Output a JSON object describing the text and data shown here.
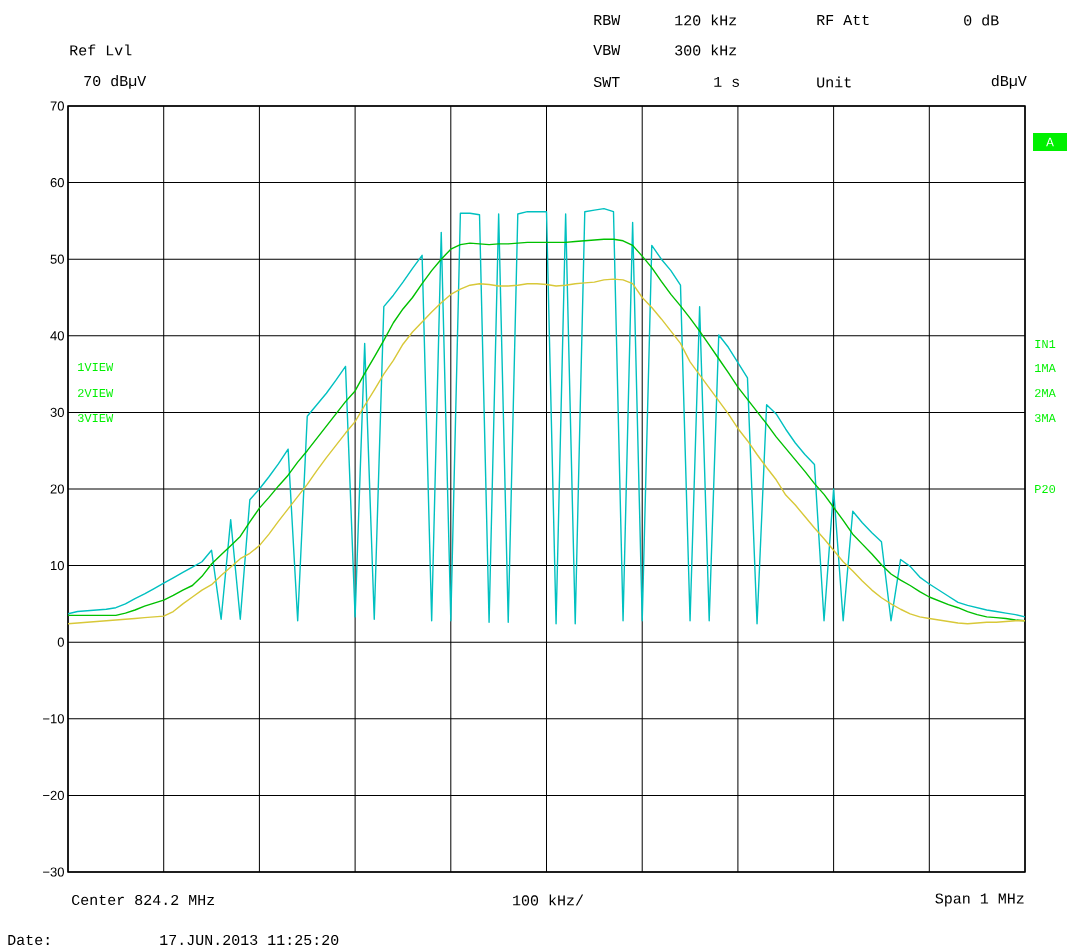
{
  "chart_data": {
    "type": "line",
    "ylim": [
      -30,
      70
    ],
    "categories": [
      null,
      null,
      null,
      null,
      null,
      null,
      null,
      null,
      null,
      null,
      null,
      null,
      null,
      null,
      null,
      null,
      null,
      null,
      null,
      null,
      null,
      null,
      null,
      null,
      null,
      null,
      null,
      null,
      null,
      null,
      null,
      null,
      null,
      null,
      null,
      null,
      null,
      null,
      null,
      null,
      null,
      null,
      null,
      null,
      null,
      null,
      null,
      null,
      null,
      null,
      null,
      null,
      null,
      null,
      null,
      null,
      null,
      null,
      null,
      null,
      null,
      null,
      null,
      null,
      null,
      null,
      null,
      null,
      null,
      null,
      null,
      null,
      null,
      null,
      null,
      null,
      null,
      null,
      null,
      null,
      null,
      null,
      null,
      null,
      null,
      null,
      null,
      null,
      null,
      null,
      null,
      null,
      null,
      null,
      null,
      null,
      null,
      null,
      null,
      null,
      null
    ],
    "yticks": [
      {
        "value": -30,
        "label": "−30"
      },
      {
        "value": -20,
        "label": "−20"
      },
      {
        "value": -10,
        "label": "−10"
      },
      {
        "value": 0,
        "label": "0"
      },
      {
        "value": 10,
        "label": "10"
      },
      {
        "value": 20,
        "label": "20"
      },
      {
        "value": 30,
        "label": "30"
      },
      {
        "value": 40,
        "label": "40"
      },
      {
        "value": 50,
        "label": "50"
      },
      {
        "value": 60,
        "label": "60"
      },
      {
        "value": 70,
        "label": "70"
      }
    ],
    "tick_labels": "y",
    "grid": true,
    "series": [
      {
        "color": "#00c0c0",
        "values": [
          3.7,
          4.0,
          4.1,
          4.2,
          4.3,
          4.5,
          5.0,
          5.7,
          6.3,
          7.0,
          7.7,
          8.4,
          9.1,
          9.8,
          10.5,
          12.0,
          3.0,
          16.0,
          3.0,
          18.6,
          20.0,
          21.6,
          23.3,
          25.2,
          2.8,
          29.5,
          31.0,
          32.5,
          34.2,
          36.0,
          3.3,
          39.0,
          3.0,
          43.8,
          45.3,
          47.0,
          48.8,
          50.5,
          2.8,
          53.5,
          2.8,
          56.0,
          56.0,
          55.8,
          2.6,
          55.9,
          2.6,
          55.9,
          56.2,
          56.2,
          56.2,
          2.4,
          55.9,
          2.4,
          56.2,
          56.4,
          56.6,
          56.2,
          2.8,
          54.8,
          2.8,
          51.8,
          50.0,
          48.5,
          46.6,
          2.8,
          43.8,
          2.8,
          40.1,
          38.5,
          36.5,
          34.5,
          2.4,
          31.0,
          29.8,
          27.8,
          26.0,
          24.5,
          23.2,
          2.8,
          20.0,
          2.8,
          17.1,
          15.6,
          14.3,
          13.1,
          2.8,
          10.8,
          9.9,
          8.5,
          7.6,
          6.8,
          6.0,
          5.2,
          4.8,
          4.5,
          4.2,
          4.0,
          3.8,
          3.6,
          3.3
        ]
      },
      {
        "color": "#00c000",
        "values": [
          3.5,
          3.5,
          3.5,
          3.5,
          3.5,
          3.5,
          3.8,
          4.2,
          4.7,
          5.1,
          5.5,
          6.1,
          6.8,
          7.4,
          8.6,
          10.2,
          11.4,
          12.6,
          13.8,
          15.7,
          17.5,
          18.9,
          20.4,
          21.8,
          23.5,
          25.0,
          26.6,
          28.2,
          29.8,
          31.4,
          32.8,
          35.1,
          37.2,
          39.4,
          41.7,
          43.5,
          45.0,
          46.8,
          48.5,
          50.0,
          51.3,
          51.9,
          52.1,
          52.0,
          51.9,
          52.0,
          52.0,
          52.1,
          52.2,
          52.2,
          52.2,
          52.2,
          52.2,
          52.3,
          52.4,
          52.5,
          52.6,
          52.6,
          52.4,
          51.8,
          50.4,
          48.9,
          47.1,
          45.4,
          43.9,
          42.3,
          40.6,
          38.8,
          37.0,
          35.2,
          33.3,
          31.7,
          30.1,
          28.5,
          26.8,
          25.3,
          23.8,
          22.3,
          20.7,
          19.3,
          17.6,
          15.9,
          14.1,
          12.8,
          11.5,
          10.1,
          8.9,
          8.1,
          7.4,
          6.6,
          5.9,
          5.4,
          4.9,
          4.5,
          4.0,
          3.6,
          3.3,
          3.2,
          3.1,
          2.9,
          2.8
        ]
      },
      {
        "color": "#d8c838",
        "values": [
          2.4,
          2.5,
          2.6,
          2.7,
          2.8,
          2.9,
          3.0,
          3.1,
          3.2,
          3.3,
          3.4,
          4.0,
          5.0,
          5.9,
          6.8,
          7.5,
          8.7,
          9.8,
          10.9,
          11.6,
          12.6,
          14.1,
          15.8,
          17.4,
          19.0,
          20.6,
          22.4,
          24.1,
          25.7,
          27.3,
          28.8,
          30.9,
          32.9,
          35.0,
          36.8,
          38.9,
          40.5,
          41.8,
          43.1,
          44.3,
          45.4,
          46.1,
          46.6,
          46.8,
          46.7,
          46.5,
          46.5,
          46.6,
          46.8,
          46.8,
          46.7,
          46.5,
          46.6,
          46.8,
          46.9,
          47.0,
          47.3,
          47.4,
          47.3,
          46.8,
          45.0,
          43.7,
          42.2,
          40.6,
          39.0,
          36.6,
          34.9,
          33.2,
          31.5,
          29.8,
          27.9,
          26.3,
          24.5,
          22.8,
          21.2,
          19.2,
          17.9,
          16.4,
          14.9,
          13.5,
          12.0,
          10.5,
          9.3,
          8.0,
          6.8,
          5.8,
          5.0,
          4.3,
          3.7,
          3.3,
          3.1,
          2.9,
          2.7,
          2.5,
          2.4,
          2.5,
          2.6,
          2.6,
          2.7,
          2.8,
          2.8
        ]
      }
    ],
    "annotations": [
      "Ref Lvl",
      "70 dBµV",
      "RBW",
      "120 kHz",
      "RF Att",
      "0 dB",
      "VBW",
      "300 kHz",
      "SWT",
      "1 s",
      "Unit",
      "dBµV",
      "1VIEW",
      "2VIEW",
      "3VIEW",
      "A",
      "IN1",
      "1MA",
      "2MA",
      "3MA",
      "P20",
      "Center 824.2 MHz",
      "100 kHz/",
      "Span 1 MHz",
      "Date:",
      "17.JUN.2013 11:25:20"
    ]
  }
}
